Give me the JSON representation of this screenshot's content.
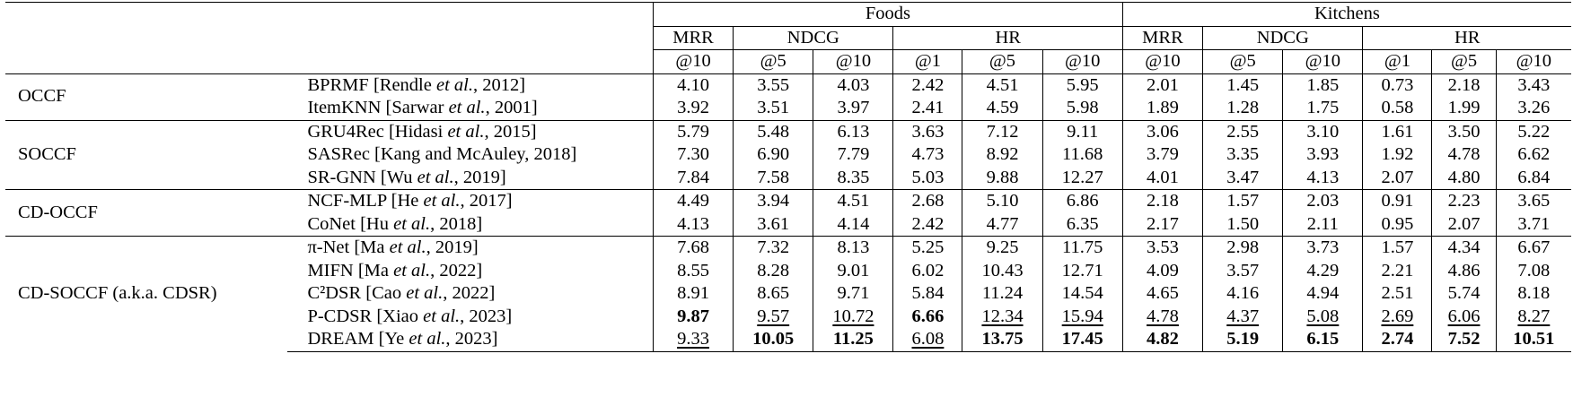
{
  "header": {
    "domains": [
      "Foods",
      "Kitchens"
    ],
    "metric_groups": [
      "MRR",
      "NDCG",
      "HR"
    ],
    "cutoffs": [
      "@10",
      "@5",
      "@10",
      "@1",
      "@5",
      "@10"
    ]
  },
  "groups": [
    {
      "name": "OCCF",
      "rows": [
        {
          "method": "BPRMF [Rendle ",
          "cite_italic": "et al.",
          "cite_tail": ", 2012]",
          "values": [
            "4.10",
            "3.55",
            "4.03",
            "2.42",
            "4.51",
            "5.95",
            "2.01",
            "1.45",
            "1.85",
            "0.73",
            "2.18",
            "3.43"
          ]
        },
        {
          "method": "ItemKNN [Sarwar ",
          "cite_italic": "et al.",
          "cite_tail": ", 2001]",
          "values": [
            "3.92",
            "3.51",
            "3.97",
            "2.41",
            "4.59",
            "5.98",
            "1.89",
            "1.28",
            "1.75",
            "0.58",
            "1.99",
            "3.26"
          ]
        }
      ]
    },
    {
      "name": "SOCCF",
      "rows": [
        {
          "method": "GRU4Rec [Hidasi ",
          "cite_italic": "et al.",
          "cite_tail": ", 2015]",
          "values": [
            "5.79",
            "5.48",
            "6.13",
            "3.63",
            "7.12",
            "9.11",
            "3.06",
            "2.55",
            "3.10",
            "1.61",
            "3.50",
            "5.22"
          ]
        },
        {
          "method": "SASRec [Kang and McAuley, 2018]",
          "cite_italic": "",
          "cite_tail": "",
          "values": [
            "7.30",
            "6.90",
            "7.79",
            "4.73",
            "8.92",
            "11.68",
            "3.79",
            "3.35",
            "3.93",
            "1.92",
            "4.78",
            "6.62"
          ]
        },
        {
          "method": "SR-GNN [Wu ",
          "cite_italic": "et al.",
          "cite_tail": ", 2019]",
          "values": [
            "7.84",
            "7.58",
            "8.35",
            "5.03",
            "9.88",
            "12.27",
            "4.01",
            "3.47",
            "4.13",
            "2.07",
            "4.80",
            "6.84"
          ]
        }
      ]
    },
    {
      "name": "CD-OCCF",
      "rows": [
        {
          "method": "NCF-MLP [He ",
          "cite_italic": "et al.",
          "cite_tail": ", 2017]",
          "values": [
            "4.49",
            "3.94",
            "4.51",
            "2.68",
            "5.10",
            "6.86",
            "2.18",
            "1.57",
            "2.03",
            "0.91",
            "2.23",
            "3.65"
          ]
        },
        {
          "method": "CoNet [Hu ",
          "cite_italic": "et al.",
          "cite_tail": ", 2018]",
          "values": [
            "4.13",
            "3.61",
            "4.14",
            "2.42",
            "4.77",
            "6.35",
            "2.17",
            "1.50",
            "2.11",
            "0.95",
            "2.07",
            "3.71"
          ]
        }
      ]
    },
    {
      "name": "CD-SOCCF (a.k.a. CDSR)",
      "rows": [
        {
          "method": "π-Net [Ma ",
          "cite_italic": "et al.",
          "cite_tail": ", 2019]",
          "values": [
            "7.68",
            "7.32",
            "8.13",
            "5.25",
            "9.25",
            "11.75",
            "3.53",
            "2.98",
            "3.73",
            "1.57",
            "4.34",
            "6.67"
          ]
        },
        {
          "method": "MIFN [Ma ",
          "cite_italic": "et al.",
          "cite_tail": ", 2022]",
          "values": [
            "8.55",
            "8.28",
            "9.01",
            "6.02",
            "10.43",
            "12.71",
            "4.09",
            "3.57",
            "4.29",
            "2.21",
            "4.86",
            "7.08"
          ]
        },
        {
          "method": "C²DSR [Cao ",
          "cite_italic": "et al.",
          "cite_tail": ", 2022]",
          "values": [
            "8.91",
            "8.65",
            "9.71",
            "5.84",
            "11.24",
            "14.54",
            "4.65",
            "4.16",
            "4.94",
            "2.51",
            "5.74",
            "8.18"
          ]
        },
        {
          "method": "P-CDSR [Xiao ",
          "cite_italic": "et al.",
          "cite_tail": ", 2023]",
          "values": [
            "9.87",
            "9.57",
            "10.72",
            "6.66",
            "12.34",
            "15.94",
            "4.78",
            "4.37",
            "5.08",
            "2.69",
            "6.06",
            "8.27"
          ],
          "style": [
            "b",
            "u",
            "u",
            "b",
            "u",
            "u",
            "u",
            "u",
            "u",
            "u",
            "u",
            "u"
          ]
        },
        {
          "method": "DREAM [Ye ",
          "cite_italic": "et al.",
          "cite_tail": ", 2023]",
          "values": [
            "9.33",
            "10.05",
            "11.25",
            "6.08",
            "13.75",
            "17.45",
            "4.82",
            "5.19",
            "6.15",
            "2.74",
            "7.52",
            "10.51"
          ],
          "style": [
            "u",
            "b",
            "b",
            "u",
            "b",
            "b",
            "b",
            "b",
            "b",
            "b",
            "b",
            "b"
          ]
        }
      ]
    }
  ]
}
